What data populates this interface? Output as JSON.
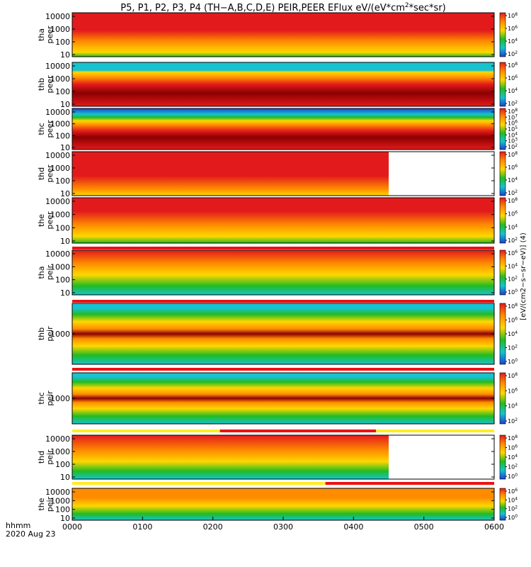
{
  "title_parts": [
    "P5, P1, P2, P3, P4 (TH−A,B,C,D,E) PEIR,PEER EFlux eV/(eV*cm",
    "2",
    "*sec*sr)"
  ],
  "x_axis": {
    "ticks": [
      "0000",
      "0100",
      "0200",
      "0300",
      "0400",
      "0500",
      "0600"
    ],
    "label_line1": "hhmm",
    "label_line2": "2020 Aug 23"
  },
  "colorbar_label": "[eV/(cm2−s−sr−eV)] (4)",
  "colors": {
    "dark_red": "#8b0000",
    "red": "#e31a1c",
    "orange": "#ff8c00",
    "yellow": "#ffd700",
    "green": "#22bb22",
    "cyan": "#17c3cf",
    "blue": "#1f3fd0",
    "status_red": "#ee1111",
    "status_yellow": "#ffee22"
  },
  "chart_data": [
    {
      "type": "heatmap",
      "probe": "tha",
      "species": "peer",
      "ylabel": [
        "tha",
        "peer"
      ],
      "yticks": [
        "10",
        "100",
        "1000",
        "10000"
      ],
      "xlim": [
        "0000",
        "0600"
      ],
      "colorbar_ticks": [
        "10^2",
        "10^4",
        "10^6",
        "10^8"
      ],
      "end_time": "0600",
      "band": "electron_tha"
    },
    {
      "type": "heatmap",
      "probe": "thb",
      "species": "peer",
      "ylabel": [
        "thb",
        "peer"
      ],
      "yticks": [
        "10",
        "100",
        "1000",
        "10000"
      ],
      "xlim": [
        "0000",
        "0600"
      ],
      "colorbar_ticks": [
        "10^2",
        "10^4",
        "10^6",
        "10^8"
      ],
      "end_time": "0600",
      "band": "electron_thb"
    },
    {
      "type": "heatmap",
      "probe": "thc",
      "species": "peer",
      "ylabel": [
        "thc",
        "peer"
      ],
      "yticks": [
        "10",
        "100",
        "1000",
        "10000"
      ],
      "xlim": [
        "0000",
        "0600"
      ],
      "colorbar_ticks": [
        "10^2",
        "10^3",
        "10^4",
        "10^5",
        "10^6",
        "10^7",
        "10^8"
      ],
      "end_time": "0600",
      "band": "electron_thc"
    },
    {
      "type": "heatmap",
      "probe": "thd",
      "species": "peer",
      "ylabel": [
        "thd",
        "peer"
      ],
      "yticks": [
        "10",
        "100",
        "1000",
        "10000"
      ],
      "xlim": [
        "0000",
        "0600"
      ],
      "colorbar_ticks": [
        "10^2",
        "10^4",
        "10^6",
        "10^8"
      ],
      "end_time": "0430",
      "band": "electron_thd"
    },
    {
      "type": "heatmap",
      "probe": "the",
      "species": "peer",
      "ylabel": [
        "the",
        "peer"
      ],
      "yticks": [
        "10",
        "100",
        "1000",
        "10000"
      ],
      "xlim": [
        "0000",
        "0600"
      ],
      "colorbar_ticks": [
        "10^2",
        "10^4",
        "10^6",
        "10^8"
      ],
      "end_time": "0600",
      "band": "electron_the"
    },
    {
      "type": "heatmap",
      "probe": "tha",
      "species": "peir",
      "ylabel": [
        "tha",
        "peir"
      ],
      "yticks": [
        "10",
        "100",
        "1000",
        "10000"
      ],
      "xlim": [
        "0000",
        "0600"
      ],
      "colorbar_ticks": [
        "10^0",
        "10^2",
        "10^4",
        "10^6"
      ],
      "end_time": "0600",
      "band": "ion_tha"
    },
    {
      "type": "heatmap",
      "probe": "thb",
      "species": "peir",
      "ylabel": [
        "thb",
        "peir"
      ],
      "yticks": [
        "1000"
      ],
      "xlim": [
        "0000",
        "0600"
      ],
      "colorbar_ticks": [
        "10^0",
        "10^2",
        "10^4",
        "10^6",
        "10^8"
      ],
      "end_time": "0600",
      "band": "ion_inner"
    },
    {
      "type": "heatmap",
      "probe": "thc",
      "species": "peir",
      "ylabel": [
        "thc",
        "peir"
      ],
      "yticks": [
        "1000"
      ],
      "xlim": [
        "0000",
        "0600"
      ],
      "colorbar_ticks": [
        "10^2",
        "10^4",
        "10^6",
        "10^8"
      ],
      "end_time": "0600",
      "band": "ion_inner"
    },
    {
      "type": "heatmap",
      "probe": "thd",
      "species": "peir",
      "ylabel": [
        "thd",
        "peir"
      ],
      "yticks": [
        "10",
        "100",
        "1000",
        "10000"
      ],
      "xlim": [
        "0000",
        "0600"
      ],
      "colorbar_ticks": [
        "10^0",
        "10^2",
        "10^4",
        "10^6",
        "10^8"
      ],
      "end_time": "0430",
      "band": "ion_thd"
    },
    {
      "type": "heatmap",
      "probe": "the",
      "species": "peir",
      "ylabel": [
        "the",
        "peir"
      ],
      "yticks": [
        "10",
        "100",
        "1000",
        "10000"
      ],
      "xlim": [
        "0000",
        "0600"
      ],
      "colorbar_ticks": [
        "10^0",
        "10^2",
        "10^4",
        "10^6"
      ],
      "end_time": "0600",
      "band": "ion_the"
    }
  ]
}
